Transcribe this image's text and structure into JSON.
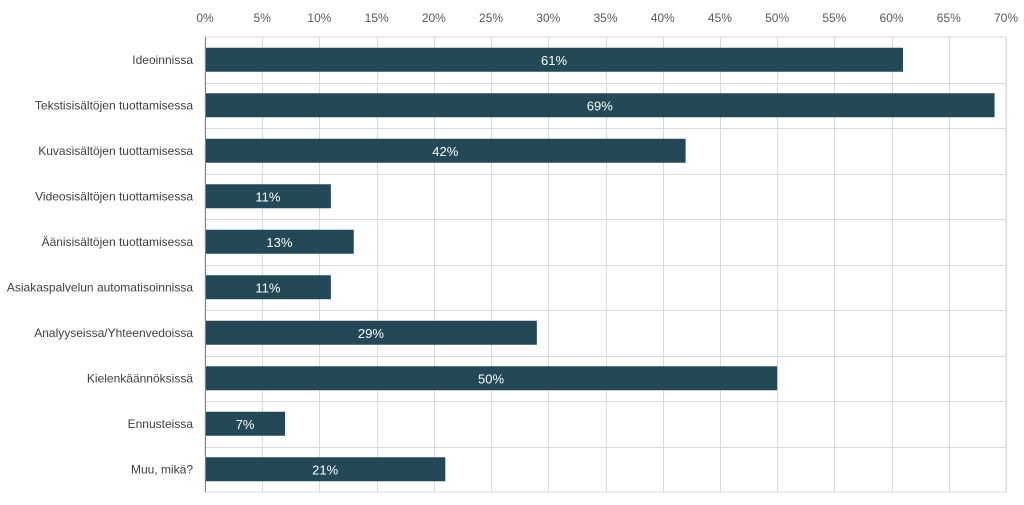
{
  "chart_data": {
    "type": "bar",
    "orientation": "horizontal",
    "title": "",
    "xlabel": "",
    "ylabel": "",
    "xlim": [
      0,
      70
    ],
    "tick_step": 5,
    "tick_suffix": "%",
    "grid": true,
    "bar_color": "#234956",
    "categories": [
      "Ideoinnissa",
      "Tekstisisältöjen tuottamisessa",
      "Kuvasisältöjen tuottamisessa",
      "Videosisältöjen tuottamisessa",
      "Äänisisältöjen tuottamisessa",
      "Asiakaspalvelun automatisoinnissa",
      "Analyyseissa/Yhteenvedoissa",
      "Kielenkäännöksissä",
      "Ennusteissa",
      "Muu, mikä?"
    ],
    "values": [
      61,
      69,
      42,
      11,
      13,
      11,
      29,
      50,
      7,
      21
    ],
    "data_labels": [
      "61%",
      "69%",
      "42%",
      "11%",
      "13%",
      "11%",
      "29%",
      "50%",
      "7%",
      "21%"
    ]
  }
}
